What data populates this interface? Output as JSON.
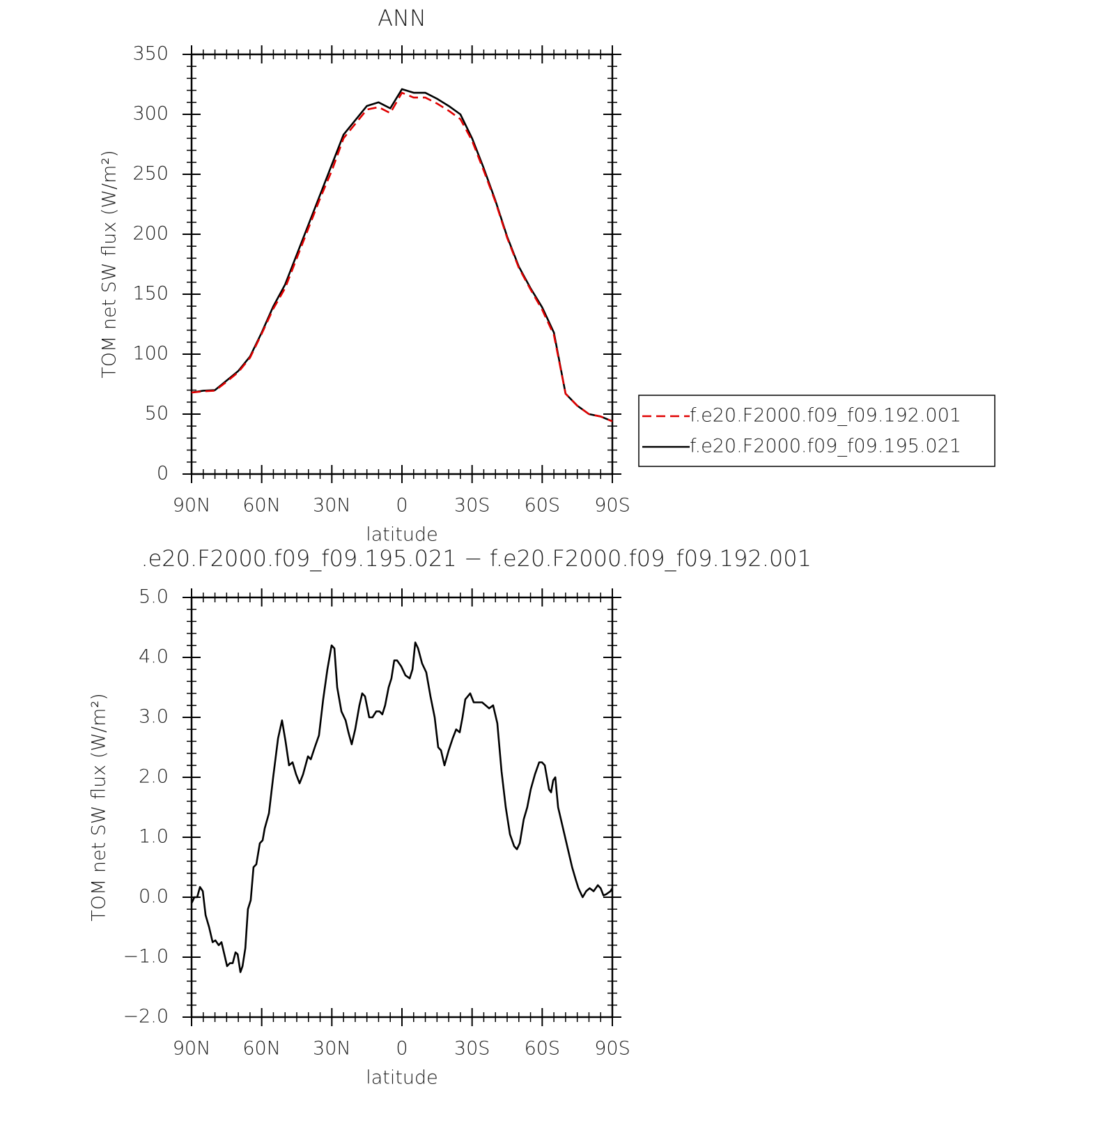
{
  "chart_data": [
    {
      "type": "line",
      "title": "ANN",
      "xlabel": "latitude",
      "ylabel": "TOM net SW flux (W/m²)",
      "xlim": [
        90,
        -90
      ],
      "xticks": [
        {
          "value": 90,
          "label": "90N"
        },
        {
          "value": 60,
          "label": "60N"
        },
        {
          "value": 30,
          "label": "30N"
        },
        0,
        {
          "value": -30,
          "label": "30S"
        },
        {
          "value": -60,
          "label": "60S"
        },
        {
          "value": -90,
          "label": "90S"
        }
      ],
      "ylim": [
        0,
        350
      ],
      "yticks": [
        0,
        50,
        100,
        150,
        200,
        250,
        300,
        350
      ],
      "legend": "right",
      "x": [
        90,
        85,
        80,
        75,
        70,
        65,
        60,
        55,
        50,
        45,
        40,
        35,
        30,
        25,
        20,
        15,
        10,
        5,
        0,
        -5,
        -10,
        -15,
        -20,
        -25,
        -30,
        -35,
        -40,
        -45,
        -50,
        -55,
        -60,
        -65,
        -70,
        -75,
        -80,
        -85,
        -90
      ],
      "series": [
        {
          "name": "f.e20.F2000.f09_f09.192.001",
          "color": "#e00000",
          "dashed": true,
          "values": [
            68,
            69,
            69.5,
            77,
            85,
            97,
            117,
            138,
            155,
            180,
            205,
            230,
            253,
            280,
            292,
            304,
            306,
            301,
            318,
            314,
            314,
            309,
            303,
            296,
            278,
            253,
            227,
            197,
            172,
            154,
            137,
            116,
            67,
            57,
            50,
            48,
            44
          ]
        },
        {
          "name": "f.e20.F2000.f09_f09.195.021",
          "color": "#000000",
          "dashed": false,
          "values": [
            68,
            69.5,
            70,
            78,
            86,
            98,
            118,
            140,
            158,
            183,
            208,
            233,
            258,
            283,
            295,
            307,
            310,
            305,
            321,
            318,
            318,
            313,
            307,
            300,
            280,
            255,
            228,
            198,
            173,
            155,
            139,
            118,
            67,
            57,
            50,
            48,
            44
          ]
        }
      ]
    },
    {
      "type": "line",
      "title": ".e20.F2000.f09_f09.195.021 − f.e20.F2000.f09_f09.192.001",
      "xlabel": "latitude",
      "ylabel": "TOM net SW flux (W/m²)",
      "xlim": [
        90,
        -90
      ],
      "xticks": [
        {
          "value": 90,
          "label": "90N"
        },
        {
          "value": 60,
          "label": "60N"
        },
        {
          "value": 30,
          "label": "30N"
        },
        0,
        {
          "value": -30,
          "label": "30S"
        },
        {
          "value": -60,
          "label": "60S"
        },
        {
          "value": -90,
          "label": "90S"
        }
      ],
      "ylim": [
        -2,
        5
      ],
      "yticks": [
        {
          "value": -2,
          "label": "−2.0"
        },
        {
          "value": -1,
          "label": "−1.0"
        },
        {
          "value": 0,
          "label": "0.0"
        },
        {
          "value": 1,
          "label": "1.0"
        },
        {
          "value": 2,
          "label": "2.0"
        },
        {
          "value": 3,
          "label": "3.0"
        },
        {
          "value": 4,
          "label": "4.0"
        },
        {
          "value": 5,
          "label": "5.0"
        }
      ],
      "x": [
        90,
        88.8,
        87.6,
        86.4,
        85.2,
        84,
        82.5,
        81,
        79.8,
        78.4,
        77.2,
        76,
        74.8,
        73.6,
        72.4,
        71.2,
        70.3,
        69.1,
        68.2,
        67,
        65.9,
        64.7,
        63.5,
        62.3,
        60.8,
        59.6,
        58.7,
        56.9,
        55.1,
        53,
        51.3,
        49.8,
        48.3,
        46.8,
        45.3,
        43.8,
        42.3,
        40.2,
        39,
        37.3,
        35.5,
        33.7,
        31.9,
        30.1,
        28.9,
        27.7,
        25.9,
        24.1,
        22.9,
        21.5,
        20,
        18.2,
        17,
        15.8,
        14,
        12.6,
        11,
        9.6,
        8.4,
        7.2,
        5.7,
        4.5,
        3.3,
        2.1,
        0.3,
        -1.5,
        -3.3,
        -4.5,
        -5.7,
        -6.9,
        -8.6,
        -10.4,
        -12.2,
        -14,
        -15.5,
        -16.7,
        -18.2,
        -20,
        -21.7,
        -23.2,
        -24.7,
        -25.9,
        -27.1,
        -29.2,
        -30.7,
        -32.5,
        -34.3,
        -35.8,
        -37.3,
        -39,
        -40.8,
        -42.6,
        -44.4,
        -46.2,
        -48,
        -49.2,
        -50.4,
        -52.1,
        -53.6,
        -55.1,
        -56.9,
        -58.7,
        -59.9,
        -61.1,
        -62.9,
        -63.8,
        -64.7,
        -65.6,
        -66.8,
        -68,
        -69.5,
        -71,
        -72.8,
        -74.3,
        -75.5,
        -77.3,
        -78.8,
        -80.3,
        -82,
        -83.8,
        -85,
        -86.2,
        -87.4,
        -89.2,
        -90
      ],
      "series": [
        {
          "color": "#000000",
          "dashed": false,
          "values": [
            -0.1,
            0.0,
            0.0,
            0.17,
            0.1,
            -0.3,
            -0.5,
            -0.75,
            -0.72,
            -0.8,
            -0.75,
            -0.95,
            -1.15,
            -1.1,
            -1.1,
            -0.92,
            -0.95,
            -1.25,
            -1.15,
            -0.85,
            -0.2,
            -0.05,
            0.5,
            0.55,
            0.9,
            0.95,
            1.15,
            1.4,
            2.0,
            2.65,
            2.95,
            2.6,
            2.2,
            2.25,
            2.05,
            1.9,
            2.05,
            2.35,
            2.3,
            2.5,
            2.7,
            3.3,
            3.8,
            4.2,
            4.15,
            3.5,
            3.1,
            2.95,
            2.75,
            2.55,
            2.8,
            3.2,
            3.4,
            3.35,
            3.0,
            3.0,
            3.1,
            3.1,
            3.05,
            3.2,
            3.5,
            3.65,
            3.95,
            3.95,
            3.85,
            3.7,
            3.65,
            3.8,
            4.25,
            4.15,
            3.9,
            3.75,
            3.35,
            3.0,
            2.5,
            2.45,
            2.2,
            2.45,
            2.65,
            2.8,
            2.75,
            3.0,
            3.3,
            3.4,
            3.25,
            3.25,
            3.25,
            3.2,
            3.15,
            3.2,
            2.9,
            2.1,
            1.5,
            1.05,
            0.85,
            0.8,
            0.9,
            1.3,
            1.5,
            1.8,
            2.05,
            2.25,
            2.25,
            2.2,
            1.8,
            1.75,
            1.95,
            2.0,
            1.5,
            1.3,
            1.05,
            0.8,
            0.5,
            0.3,
            0.15,
            0.0,
            0.1,
            0.15,
            0.1,
            0.2,
            0.15,
            0.03,
            0.05,
            0.1,
            0.15
          ]
        }
      ]
    }
  ]
}
